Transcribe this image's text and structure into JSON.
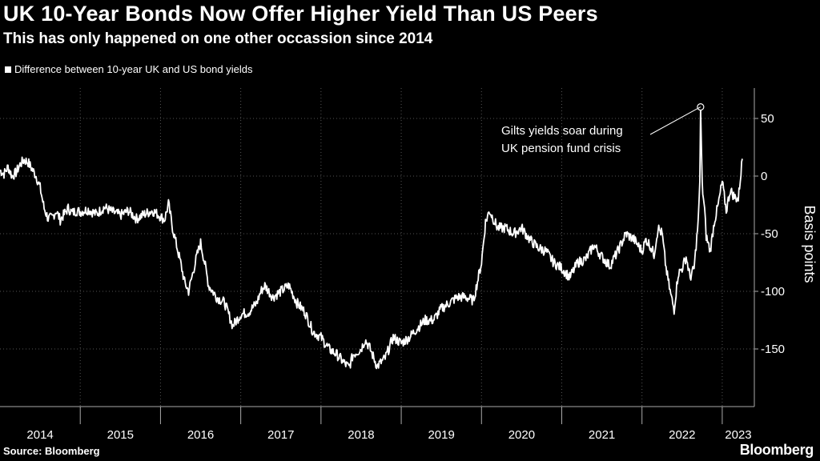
{
  "header": {
    "title": "UK 10-Year Bonds Now Offer Higher Yield Than US Peers",
    "subtitle": "This has only happened on one other occassion since 2014"
  },
  "footer": {
    "source": "Source: Bloomberg",
    "brand": "Bloomberg"
  },
  "colors": {
    "background": "#000000",
    "line": "#ffffff",
    "grid": "#555555"
  },
  "chart_data": {
    "type": "line",
    "title": "UK 10-Year Bonds Now Offer Higher Yield Than US Peers",
    "subtitle": "This has only happened on one other occassion since 2014",
    "ylabel": "Basis points",
    "xlabel": "",
    "ylim": [
      -190,
      80
    ],
    "xlim": [
      2014.0,
      2023.4
    ],
    "yticks": [
      50,
      0,
      -50,
      -100,
      -150
    ],
    "ytick_labels": [
      "50",
      "0",
      "-50",
      "-100",
      "-150"
    ],
    "xticks": [
      "2014",
      "2015",
      "2016",
      "2017",
      "2018",
      "2019",
      "2020",
      "2021",
      "2022",
      "2023"
    ],
    "grid": true,
    "legend": "top-left",
    "annotation": {
      "text_lines": [
        "Gilts yields soar during",
        "UK pension fund crisis"
      ],
      "x": 2022.73,
      "y": 60
    },
    "series": [
      {
        "name": "Difference between 10-year UK and US bond yields",
        "x": [
          2014.0,
          2014.05,
          2014.1,
          2014.15,
          2014.2,
          2014.25,
          2014.3,
          2014.35,
          2014.4,
          2014.45,
          2014.5,
          2014.55,
          2014.6,
          2014.65,
          2014.7,
          2014.75,
          2014.8,
          2014.85,
          2014.9,
          2014.95,
          2015.0,
          2015.1,
          2015.2,
          2015.3,
          2015.4,
          2015.5,
          2015.6,
          2015.7,
          2015.8,
          2015.9,
          2016.0,
          2016.05,
          2016.1,
          2016.15,
          2016.2,
          2016.25,
          2016.3,
          2016.35,
          2016.4,
          2016.45,
          2016.5,
          2016.55,
          2016.6,
          2016.7,
          2016.8,
          2016.9,
          2017.0,
          2017.1,
          2017.2,
          2017.25,
          2017.3,
          2017.4,
          2017.5,
          2017.6,
          2017.7,
          2017.8,
          2017.9,
          2018.0,
          2018.1,
          2018.2,
          2018.3,
          2018.35,
          2018.4,
          2018.5,
          2018.55,
          2018.6,
          2018.7,
          2018.8,
          2018.9,
          2019.0,
          2019.1,
          2019.2,
          2019.3,
          2019.4,
          2019.5,
          2019.6,
          2019.7,
          2019.8,
          2019.9,
          2020.0,
          2020.05,
          2020.1,
          2020.2,
          2020.3,
          2020.4,
          2020.5,
          2020.6,
          2020.7,
          2020.8,
          2020.9,
          2021.0,
          2021.1,
          2021.2,
          2021.3,
          2021.4,
          2021.5,
          2021.6,
          2021.7,
          2021.8,
          2021.9,
          2022.0,
          2022.05,
          2022.1,
          2022.15,
          2022.2,
          2022.25,
          2022.3,
          2022.35,
          2022.4,
          2022.45,
          2022.5,
          2022.55,
          2022.6,
          2022.65,
          2022.7,
          2022.72,
          2022.73,
          2022.75,
          2022.78,
          2022.8,
          2022.85,
          2022.9,
          2022.95,
          2023.0,
          2023.05,
          2023.1,
          2023.15,
          2023.2,
          2023.25
        ],
        "values": [
          5,
          2,
          8,
          0,
          3,
          10,
          14,
          12,
          6,
          0,
          -10,
          -28,
          -37,
          -36,
          -30,
          -38,
          -33,
          -28,
          -32,
          -30,
          -31,
          -29,
          -33,
          -27,
          -31,
          -34,
          -30,
          -37,
          -33,
          -30,
          -35,
          -38,
          -24,
          -45,
          -60,
          -75,
          -92,
          -100,
          -85,
          -70,
          -58,
          -75,
          -95,
          -105,
          -110,
          -130,
          -120,
          -118,
          -110,
          -100,
          -95,
          -105,
          -100,
          -95,
          -110,
          -118,
          -135,
          -140,
          -150,
          -155,
          -163,
          -166,
          -155,
          -150,
          -142,
          -148,
          -165,
          -158,
          -140,
          -145,
          -140,
          -132,
          -125,
          -125,
          -115,
          -110,
          -105,
          -105,
          -108,
          -75,
          -40,
          -30,
          -45,
          -45,
          -50,
          -45,
          -55,
          -62,
          -65,
          -75,
          -80,
          -88,
          -75,
          -72,
          -60,
          -70,
          -78,
          -65,
          -50,
          -55,
          -65,
          -55,
          -60,
          -68,
          -45,
          -50,
          -80,
          -100,
          -116,
          -85,
          -80,
          -70,
          -88,
          -80,
          -40,
          -5,
          60,
          -8,
          -30,
          -52,
          -65,
          -40,
          -25,
          -5,
          -30,
          -12,
          -18,
          -20,
          15
        ]
      }
    ]
  }
}
